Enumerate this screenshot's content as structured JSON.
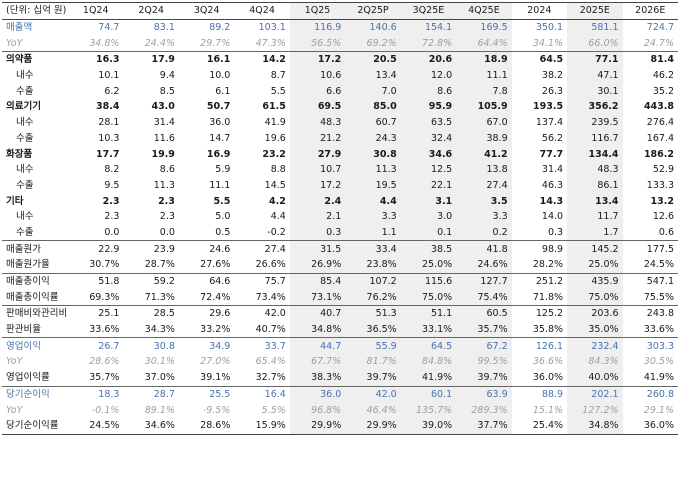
{
  "table": {
    "unit_label": "(단위: 십억 원)",
    "columns": [
      "1Q24",
      "2Q24",
      "3Q24",
      "4Q24",
      "1Q25",
      "2Q25P",
      "3Q25E",
      "4Q25E",
      "2024",
      "2025E",
      "2026E"
    ],
    "rows": [
      {
        "label": "매출액",
        "style": "kpi",
        "values": [
          "74.7",
          "83.1",
          "89.2",
          "103.1",
          "116.9",
          "140.6",
          "154.1",
          "169.5",
          "350.1",
          "581.1",
          "724.7"
        ]
      },
      {
        "label": "YoY",
        "style": "yoy",
        "values": [
          "34.8%",
          "24.4%",
          "29.7%",
          "47.3%",
          "56.5%",
          "69.2%",
          "72.8%",
          "64.4%",
          "34.1%",
          "66.0%",
          "24.7%"
        ]
      },
      {
        "label": "의약품",
        "style": "bold sep",
        "values": [
          "16.3",
          "17.9",
          "16.1",
          "14.2",
          "17.2",
          "20.5",
          "20.6",
          "18.9",
          "64.5",
          "77.1",
          "81.4"
        ]
      },
      {
        "label": "내수",
        "style": "sub",
        "values": [
          "10.1",
          "9.4",
          "10.0",
          "8.7",
          "10.6",
          "13.4",
          "12.0",
          "11.1",
          "38.2",
          "47.1",
          "46.2"
        ]
      },
      {
        "label": "수출",
        "style": "sub",
        "values": [
          "6.2",
          "8.5",
          "6.1",
          "5.5",
          "6.6",
          "7.0",
          "8.6",
          "7.8",
          "26.3",
          "30.1",
          "35.2"
        ]
      },
      {
        "label": "의료기기",
        "style": "bold",
        "values": [
          "38.4",
          "43.0",
          "50.7",
          "61.5",
          "69.5",
          "85.0",
          "95.9",
          "105.9",
          "193.5",
          "356.2",
          "443.8"
        ]
      },
      {
        "label": "내수",
        "style": "sub",
        "values": [
          "28.1",
          "31.4",
          "36.0",
          "41.9",
          "48.3",
          "60.7",
          "63.5",
          "67.0",
          "137.4",
          "239.5",
          "276.4"
        ]
      },
      {
        "label": "수출",
        "style": "sub",
        "values": [
          "10.3",
          "11.6",
          "14.7",
          "19.6",
          "21.2",
          "24.3",
          "32.4",
          "38.9",
          "56.2",
          "116.7",
          "167.4"
        ]
      },
      {
        "label": "화장품",
        "style": "bold",
        "values": [
          "17.7",
          "19.9",
          "16.9",
          "23.2",
          "27.9",
          "30.8",
          "34.6",
          "41.2",
          "77.7",
          "134.4",
          "186.2"
        ]
      },
      {
        "label": "내수",
        "style": "sub",
        "values": [
          "8.2",
          "8.6",
          "5.9",
          "8.8",
          "10.7",
          "11.3",
          "12.5",
          "13.8",
          "31.4",
          "48.3",
          "52.9"
        ]
      },
      {
        "label": "수출",
        "style": "sub",
        "values": [
          "9.5",
          "11.3",
          "11.1",
          "14.5",
          "17.2",
          "19.5",
          "22.1",
          "27.4",
          "46.3",
          "86.1",
          "133.3"
        ]
      },
      {
        "label": "기타",
        "style": "bold",
        "values": [
          "2.3",
          "2.3",
          "5.5",
          "4.2",
          "2.4",
          "4.4",
          "3.1",
          "3.5",
          "14.3",
          "13.4",
          "13.2"
        ]
      },
      {
        "label": "내수",
        "style": "sub",
        "values": [
          "2.3",
          "2.3",
          "5.0",
          "4.4",
          "2.1",
          "3.3",
          "3.0",
          "3.3",
          "14.0",
          "11.7",
          "12.6"
        ]
      },
      {
        "label": "수출",
        "style": "sub",
        "values": [
          "0.0",
          "0.0",
          "0.5",
          "-0.2",
          "0.3",
          "1.1",
          "0.1",
          "0.2",
          "0.3",
          "1.7",
          "0.6"
        ]
      },
      {
        "label": "매출원가",
        "style": "sep",
        "values": [
          "22.9",
          "23.9",
          "24.6",
          "27.4",
          "31.5",
          "33.4",
          "38.5",
          "41.8",
          "98.9",
          "145.2",
          "177.5"
        ]
      },
      {
        "label": "매출원가율",
        "style": "",
        "values": [
          "30.7%",
          "28.7%",
          "27.6%",
          "26.6%",
          "26.9%",
          "23.8%",
          "25.0%",
          "24.6%",
          "28.2%",
          "25.0%",
          "24.5%"
        ]
      },
      {
        "label": "매출총이익",
        "style": "sep",
        "values": [
          "51.8",
          "59.2",
          "64.6",
          "75.7",
          "85.4",
          "107.2",
          "115.6",
          "127.7",
          "251.2",
          "435.9",
          "547.1"
        ]
      },
      {
        "label": "매출총이익률",
        "style": "",
        "values": [
          "69.3%",
          "71.3%",
          "72.4%",
          "73.4%",
          "73.1%",
          "76.2%",
          "75.0%",
          "75.4%",
          "71.8%",
          "75.0%",
          "75.5%"
        ]
      },
      {
        "label": "판매비와관리비",
        "style": "sep",
        "values": [
          "25.1",
          "28.5",
          "29.6",
          "42.0",
          "40.7",
          "51.3",
          "51.1",
          "60.5",
          "125.2",
          "203.6",
          "243.8"
        ]
      },
      {
        "label": "판관비율",
        "style": "",
        "values": [
          "33.6%",
          "34.3%",
          "33.2%",
          "40.7%",
          "34.8%",
          "36.5%",
          "33.1%",
          "35.7%",
          "35.8%",
          "35.0%",
          "33.6%"
        ]
      },
      {
        "label": "영업이익",
        "style": "kpi sep",
        "values": [
          "26.7",
          "30.8",
          "34.9",
          "33.7",
          "44.7",
          "55.9",
          "64.5",
          "67.2",
          "126.1",
          "232.4",
          "303.3"
        ]
      },
      {
        "label": "YoY",
        "style": "yoy",
        "values": [
          "28.6%",
          "30.1%",
          "27.0%",
          "65.4%",
          "67.7%",
          "81.7%",
          "84.8%",
          "99.5%",
          "36.6%",
          "84.3%",
          "30.5%"
        ]
      },
      {
        "label": "영업이익률",
        "style": "",
        "values": [
          "35.7%",
          "37.0%",
          "39.1%",
          "32.7%",
          "38.3%",
          "39.7%",
          "41.9%",
          "39.7%",
          "36.0%",
          "40.0%",
          "41.9%"
        ]
      },
      {
        "label": "당기순이익",
        "style": "kpi sep",
        "values": [
          "18.3",
          "28.7",
          "25.5",
          "16.4",
          "36.0",
          "42.0",
          "60.1",
          "63.9",
          "88.9",
          "202.1",
          "260.8"
        ]
      },
      {
        "label": "YoY",
        "style": "yoy",
        "values": [
          "-0.1%",
          "89.1%",
          "-9.5%",
          "5.5%",
          "96.8%",
          "46.4%",
          "135.7%",
          "289.3%",
          "15.1%",
          "127.2%",
          "29.1%"
        ]
      },
      {
        "label": "당기순이익률",
        "style": "lastrow",
        "values": [
          "24.5%",
          "34.6%",
          "28.6%",
          "15.9%",
          "29.9%",
          "29.9%",
          "39.0%",
          "37.7%",
          "25.4%",
          "34.8%",
          "36.0%"
        ]
      }
    ]
  }
}
